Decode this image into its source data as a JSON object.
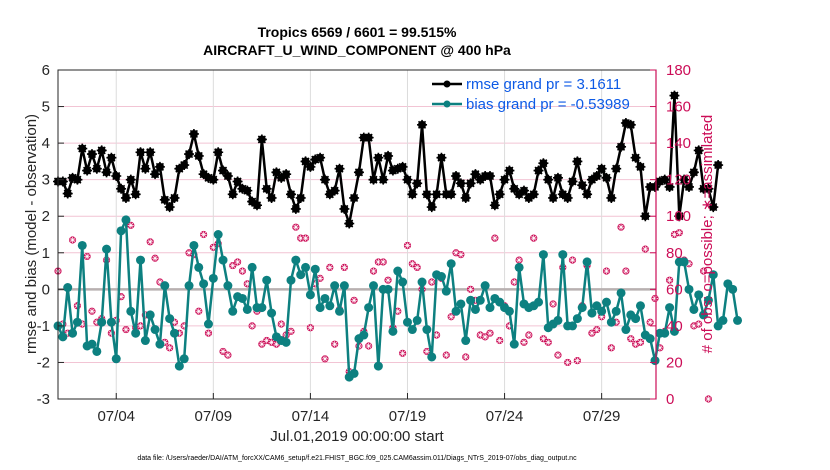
{
  "chart_data": {
    "type": "line",
    "title": "Tropics 6569 / 6601 = 99.515%",
    "subtitle": "AIRCRAFT_U_WIND_COMPONENT @ 400 hPa",
    "xlabel": "Jul.01,2019 00:00:00 start",
    "ylabel": "rmse and bias (model - observation)",
    "ylabel_right": "# of obs: o=possible; ∗=assimilated",
    "footer": "data file: /Users/raeder/DAI/ATM_forcXX/CAM6_setup/f.e21.FHIST_BGC.f09_025.CAM6assim.011/Diags_NTrS_2019-07/obs_diag_output.nc",
    "x_unit": "days since Jul.01,2019 00:00",
    "xlim": [
      0,
      30.8
    ],
    "ylim": [
      -3,
      6
    ],
    "ylim_right": [
      0,
      180
    ],
    "grid": true,
    "zero_line": true,
    "legend_position": "top-right",
    "x_ticks": [
      {
        "value": 3,
        "label": "07/04"
      },
      {
        "value": 8,
        "label": "07/09"
      },
      {
        "value": 13,
        "label": "07/14"
      },
      {
        "value": 18,
        "label": "07/19"
      },
      {
        "value": 23,
        "label": "07/24"
      },
      {
        "value": 28,
        "label": "07/29"
      }
    ],
    "y_ticks": [
      -3,
      -2,
      -1,
      0,
      1,
      2,
      3,
      4,
      5,
      6
    ],
    "y_ticks_right": [
      0,
      20,
      40,
      60,
      80,
      100,
      120,
      140,
      160,
      180
    ],
    "colors": {
      "rmse": "#000000",
      "bias": "#0d8080",
      "obs": "#cc0d57",
      "legend_text": "#0d5ae6",
      "zero_line": "#b8b0b0",
      "grid": "#f2c4d4"
    },
    "series": [
      {
        "name": "rmse grand pr = 3.1611",
        "axis": "left",
        "marker": "asterisk-filled",
        "x_start": 0,
        "x_step": 0.25,
        "values": [
          2.95,
          2.95,
          2.62,
          3.05,
          3.0,
          3.85,
          3.25,
          3.7,
          3.3,
          3.8,
          3.2,
          3.6,
          3.1,
          2.75,
          2.5,
          3.0,
          2.6,
          3.75,
          3.3,
          3.75,
          3.15,
          3.35,
          2.45,
          2.25,
          2.5,
          3.3,
          3.4,
          3.7,
          4.25,
          3.65,
          3.15,
          3.05,
          3.0,
          3.75,
          3.25,
          3.1,
          2.6,
          2.95,
          2.75,
          2.7,
          2.4,
          2.3,
          4.1,
          2.75,
          2.5,
          3.2,
          3.05,
          3.15,
          2.6,
          2.2,
          2.5,
          3.5,
          3.35,
          3.55,
          3.6,
          3.0,
          2.6,
          2.7,
          3.3,
          2.2,
          1.8,
          2.5,
          3.2,
          4.15,
          4.15,
          3.0,
          3.6,
          3.0,
          3.65,
          3.25,
          3.3,
          3.35,
          3.0,
          2.6,
          2.9,
          4.5,
          2.6,
          2.25,
          2.6,
          3.6,
          2.6,
          2.6,
          3.1,
          2.9,
          2.5,
          2.9,
          3.15,
          3.0,
          3.1,
          3.1,
          2.3,
          2.6,
          3.0,
          3.25,
          2.75,
          2.6,
          2.7,
          2.5,
          2.6,
          3.25,
          3.45,
          3.0,
          2.5,
          3.05,
          2.6,
          2.5,
          2.95,
          3.5,
          2.85,
          2.6,
          3.0,
          3.1,
          3.3,
          3.05,
          2.5,
          3.3,
          3.9,
          4.55,
          4.5,
          3.6,
          3.35,
          2.0,
          2.8,
          2.8,
          2.95,
          3.0,
          2.8,
          5.3,
          2.0,
          3.0,
          2.8,
          3.2,
          3.8,
          2.75,
          2.75,
          2.25,
          3.4
        ]
      },
      {
        "name": "bias grand pr = -0.53989",
        "axis": "left",
        "marker": "circle-filled",
        "x_start": 0,
        "x_step": 0.25,
        "values": [
          -1.0,
          -1.3,
          0.05,
          -1.2,
          -0.9,
          1.2,
          -1.55,
          -1.5,
          -1.7,
          -0.9,
          1.1,
          -0.9,
          -1.9,
          1.6,
          1.9,
          -0.6,
          -1.2,
          0.8,
          -1.4,
          -0.7,
          -1.1,
          -1.5,
          0.1,
          -0.8,
          -1.2,
          -2.1,
          -1.9,
          0.1,
          1.2,
          0.6,
          0.15,
          -0.95,
          0.3,
          1.5,
          0.8,
          0.1,
          -0.6,
          -0.2,
          -0.25,
          -0.55,
          0.6,
          -0.5,
          -0.5,
          0.25,
          -0.65,
          -1.3,
          -1.4,
          -1.45,
          0.25,
          0.8,
          0.4,
          0.6,
          -0.15,
          0.55,
          -0.5,
          -0.25,
          -0.45,
          0.1,
          -0.6,
          0.1,
          -2.4,
          -2.3,
          -1.35,
          -1.25,
          -0.5,
          0.1,
          -2.1,
          0.0,
          -0.0,
          -1.15,
          0.5,
          0.2,
          -0.9,
          -1.1,
          -0.85,
          0.2,
          -1.1,
          -1.85,
          0.4,
          0.35,
          -0.05,
          0.7,
          -0.6,
          -0.4,
          -1.4,
          -0.3,
          -0.55,
          -0.3,
          0.1,
          -0.5,
          -0.25,
          -0.35,
          -0.5,
          -0.6,
          -1.5,
          0.6,
          -0.4,
          -0.5,
          -0.45,
          -0.35,
          0.95,
          -1.05,
          -0.95,
          -0.85,
          0.95,
          -1.0,
          -1.0,
          -0.8,
          -0.5,
          0.75,
          -0.65,
          -0.45,
          -0.6,
          -0.35,
          -0.9,
          -0.6,
          -0.1,
          -1.1,
          -0.7,
          -0.8,
          -0.45,
          -1.25,
          -1.35,
          -1.95,
          -1.2,
          -1.2,
          -0.5,
          -1.15,
          0.75,
          0.75,
          0.0,
          -0.55,
          -0.15,
          -0.7,
          -0.3,
          0.4,
          -1.0,
          -0.85,
          0.15,
          0.0,
          -0.85
        ]
      },
      {
        "name": "# of obs (possible / assimilated)",
        "axis": "right",
        "marker": "asterisk-circle",
        "x_start": 0,
        "x_step": 0.25,
        "values": [
          70,
          41,
          36,
          87,
          51,
          41,
          78,
          48,
          42,
          44,
          76,
          36,
          43,
          56,
          38,
          95,
          39,
          40,
          46,
          86,
          77,
          64,
          31,
          28,
          42,
          36,
          40,
          80,
          79,
          48,
          90,
          36,
          83,
          85,
          26,
          24,
          73,
          75,
          70,
          63,
          40,
          48,
          30,
          32,
          31,
          30,
          41,
          35,
          37,
          94,
          88,
          88,
          39,
          63,
          66,
          22,
          72,
          30,
          49,
          72,
          15,
          54,
          29,
          37,
          29,
          70,
          75,
          75,
          65,
          39,
          48,
          25,
          84,
          74,
          72,
          60,
          26,
          64,
          35,
          66,
          24,
          45,
          80,
          79,
          23,
          60,
          54,
          35,
          34,
          36,
          88,
          32,
          51,
          40,
          64,
          76,
          31,
          35,
          88,
          53,
          33,
          31,
          52,
          24,
          72,
          20,
          76,
          21,
          51,
          73,
          36,
          38,
          45,
          70,
          28,
          42,
          94,
          70,
          33,
          30,
          31,
          82,
          42,
          55,
          28,
          37,
          65,
          90,
          91,
          76,
          74,
          40,
          41,
          70,
          0
        ]
      }
    ]
  }
}
